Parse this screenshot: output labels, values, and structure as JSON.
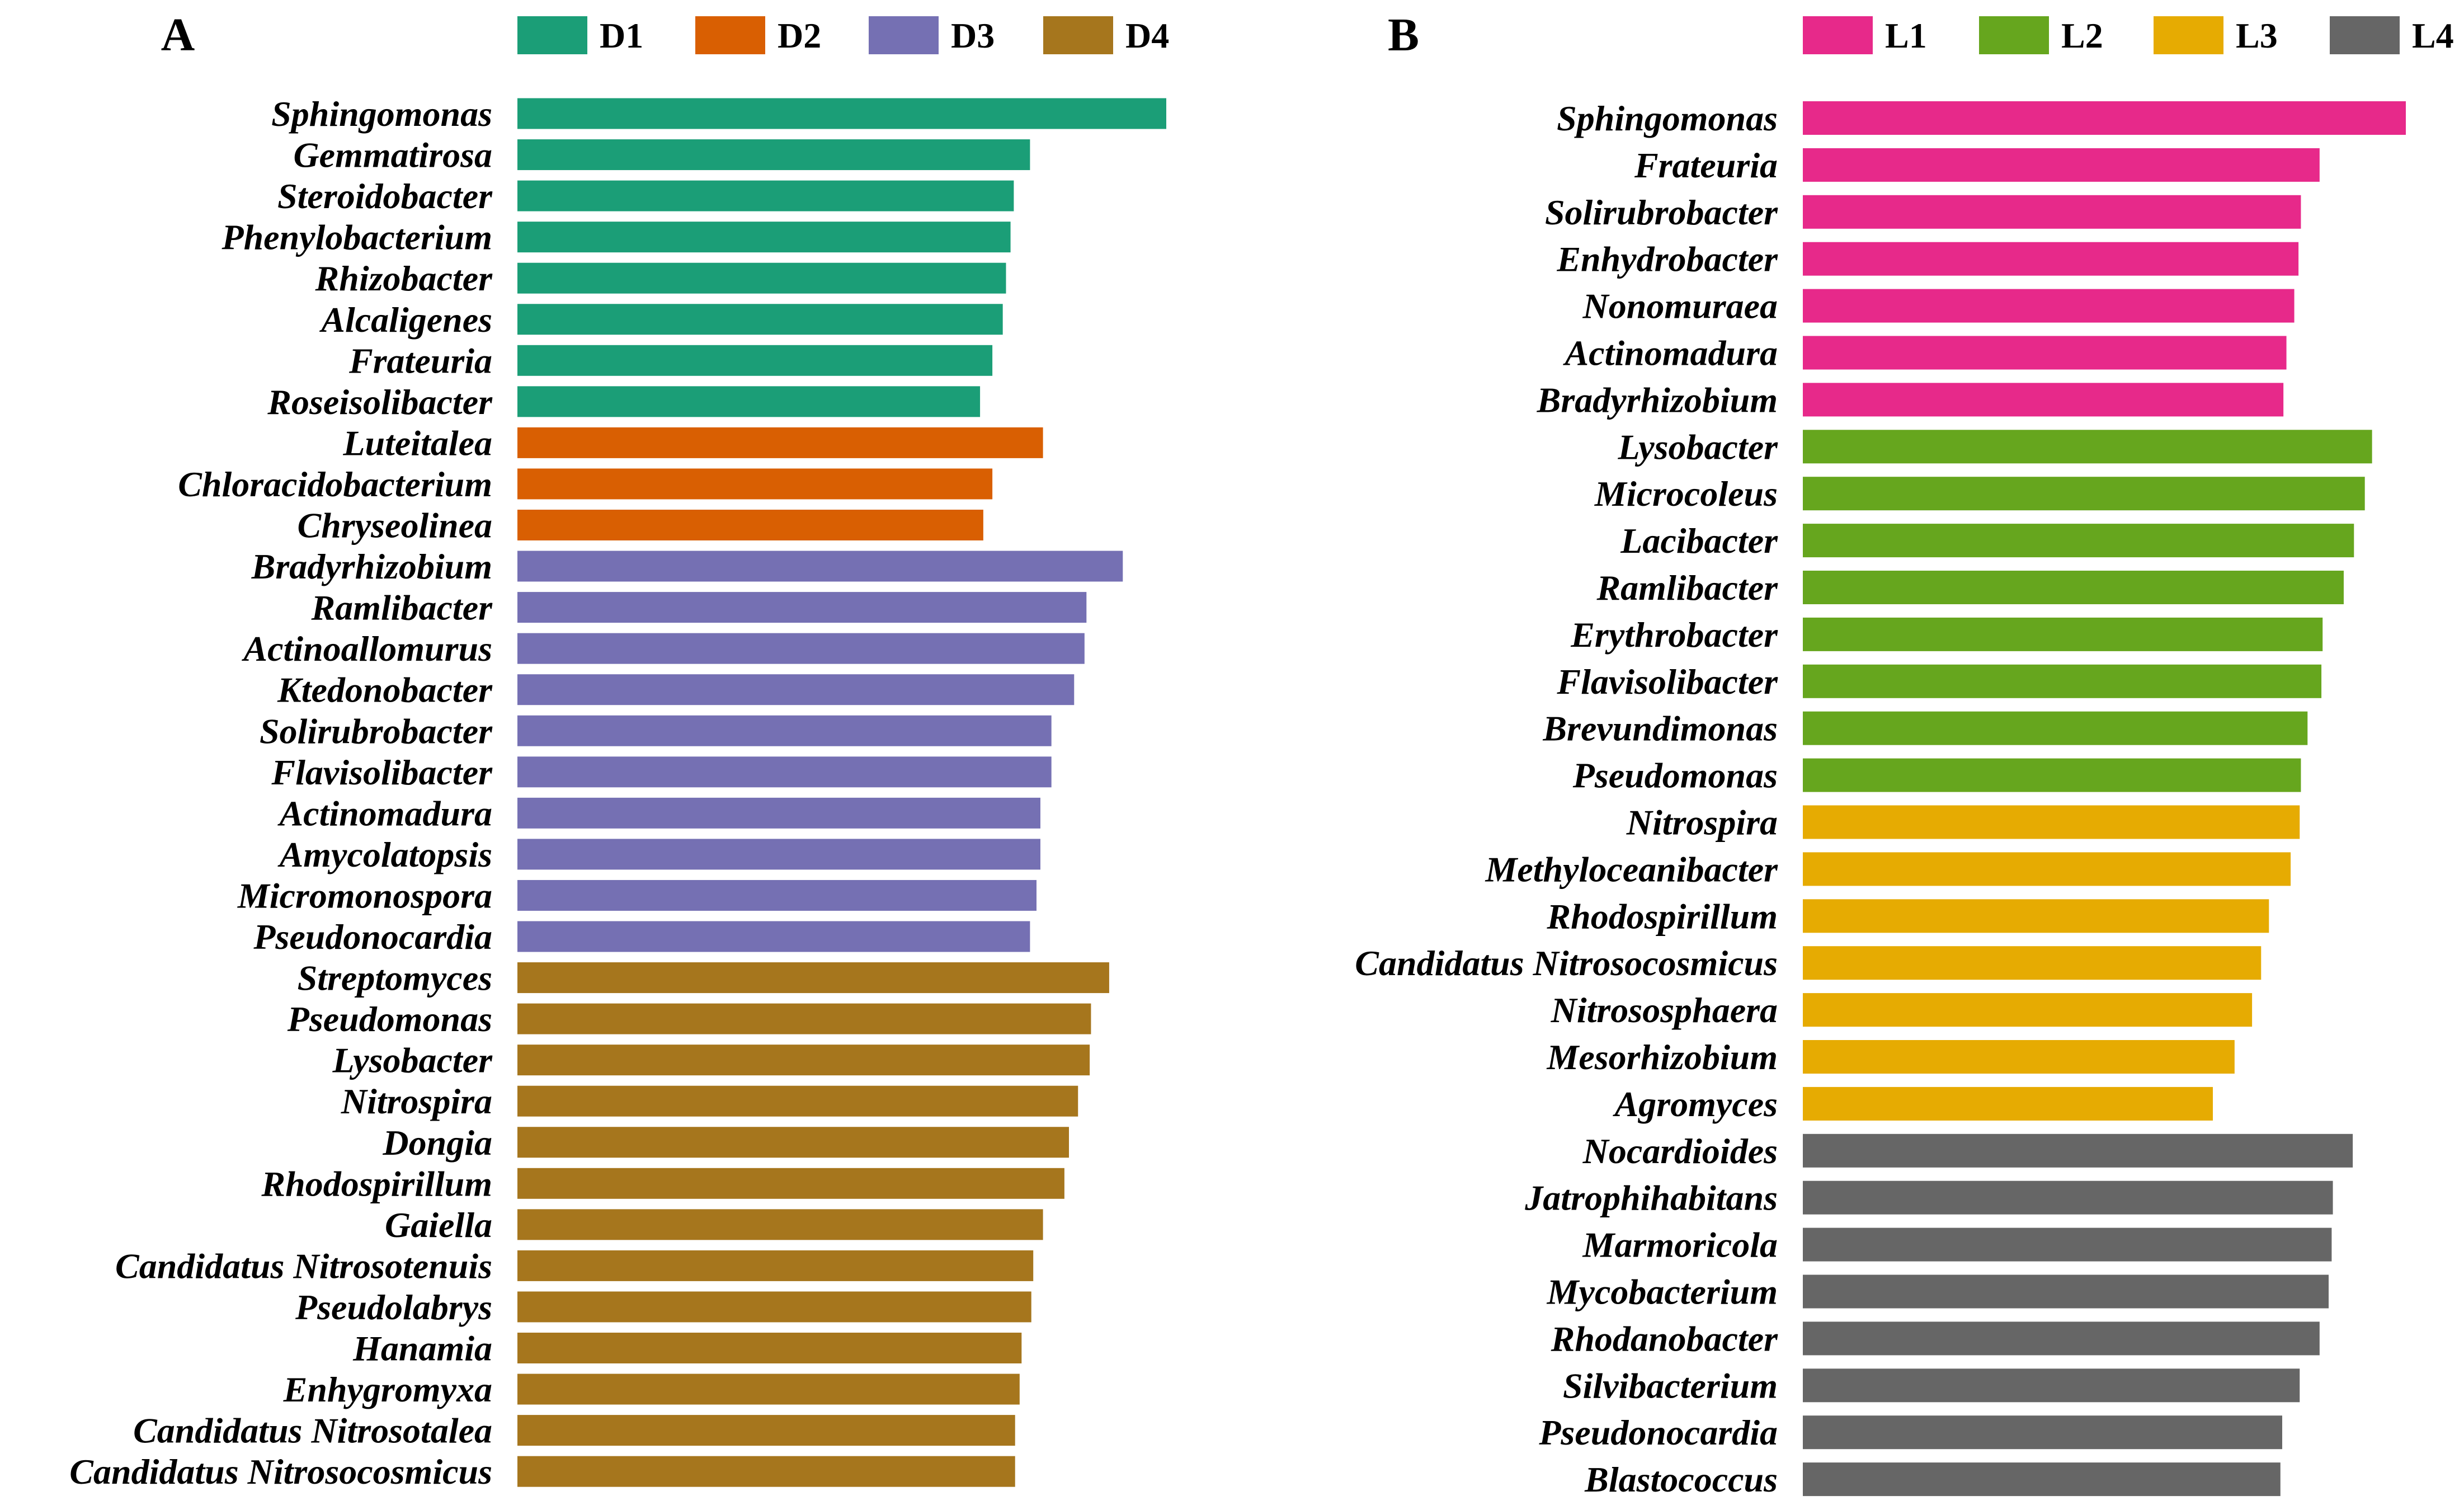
{
  "chart_data": [
    {
      "type": "bar",
      "orientation": "horizontal",
      "panel_label": "A",
      "xlim": [
        0,
        1
      ],
      "legend": [
        {
          "name": "D1",
          "color": "#1b9e77"
        },
        {
          "name": "D2",
          "color": "#d95f02"
        },
        {
          "name": "D3",
          "color": "#7570b3"
        },
        {
          "name": "D4",
          "color": "#a6761d"
        }
      ],
      "bars": [
        {
          "label": "Sphingomonas",
          "value": 1.0,
          "group": "D1"
        },
        {
          "label": "Gemmatirosa",
          "value": 0.79,
          "group": "D1"
        },
        {
          "label": "Steroidobacter",
          "value": 0.765,
          "group": "D1"
        },
        {
          "label": "Phenylobacterium",
          "value": 0.76,
          "group": "D1"
        },
        {
          "label": "Rhizobacter",
          "value": 0.753,
          "group": "D1"
        },
        {
          "label": "Alcaligenes",
          "value": 0.748,
          "group": "D1"
        },
        {
          "label": "Frateuria",
          "value": 0.732,
          "group": "D1"
        },
        {
          "label": "Roseisolibacter",
          "value": 0.713,
          "group": "D1"
        },
        {
          "label": "Luteitalea",
          "value": 0.81,
          "group": "D2"
        },
        {
          "label": "Chloracidobacterium",
          "value": 0.732,
          "group": "D2"
        },
        {
          "label": "Chryseolinea",
          "value": 0.718,
          "group": "D2"
        },
        {
          "label": "Bradyrhizobium",
          "value": 0.933,
          "group": "D3"
        },
        {
          "label": "Ramlibacter",
          "value": 0.877,
          "group": "D3"
        },
        {
          "label": "Actinoallomurus",
          "value": 0.874,
          "group": "D3"
        },
        {
          "label": "Ktedonobacter",
          "value": 0.858,
          "group": "D3"
        },
        {
          "label": "Solirubrobacter",
          "value": 0.823,
          "group": "D3"
        },
        {
          "label": "Flavisolibacter",
          "value": 0.823,
          "group": "D3"
        },
        {
          "label": "Actinomadura",
          "value": 0.806,
          "group": "D3"
        },
        {
          "label": "Amycolatopsis",
          "value": 0.806,
          "group": "D3"
        },
        {
          "label": "Micromonospora",
          "value": 0.8,
          "group": "D3"
        },
        {
          "label": "Pseudonocardia",
          "value": 0.79,
          "group": "D3"
        },
        {
          "label": "Streptomyces",
          "value": 0.912,
          "group": "D4"
        },
        {
          "label": "Pseudomonas",
          "value": 0.884,
          "group": "D4"
        },
        {
          "label": "Lysobacter",
          "value": 0.882,
          "group": "D4"
        },
        {
          "label": "Nitrospira",
          "value": 0.864,
          "group": "D4"
        },
        {
          "label": "Dongia",
          "value": 0.85,
          "group": "D4"
        },
        {
          "label": "Rhodospirillum",
          "value": 0.843,
          "group": "D4"
        },
        {
          "label": "Gaiella",
          "value": 0.81,
          "group": "D4"
        },
        {
          "label": "Candidatus Nitrosotenuis",
          "value": 0.795,
          "group": "D4"
        },
        {
          "label": "Pseudolabrys",
          "value": 0.792,
          "group": "D4"
        },
        {
          "label": "Hanamia",
          "value": 0.777,
          "group": "D4"
        },
        {
          "label": "Enhygromyxa",
          "value": 0.774,
          "group": "D4"
        },
        {
          "label": "Candidatus Nitrosotalea",
          "value": 0.767,
          "group": "D4"
        },
        {
          "label": "Candidatus Nitrosocosmicus",
          "value": 0.767,
          "group": "D4"
        }
      ]
    },
    {
      "type": "bar",
      "orientation": "horizontal",
      "panel_label": "B",
      "xlim": [
        0,
        1
      ],
      "legend": [
        {
          "name": "L1",
          "color": "#e7298a"
        },
        {
          "name": "L2",
          "color": "#66a61e"
        },
        {
          "name": "L3",
          "color": "#e6ab02"
        },
        {
          "name": "L4",
          "color": "#666666"
        }
      ],
      "bars": [
        {
          "label": "Sphingomonas",
          "value": 1.0,
          "group": "L1"
        },
        {
          "label": "Frateuria",
          "value": 0.857,
          "group": "L1"
        },
        {
          "label": "Solirubrobacter",
          "value": 0.826,
          "group": "L1"
        },
        {
          "label": "Enhydrobacter",
          "value": 0.822,
          "group": "L1"
        },
        {
          "label": "Nonomuraea",
          "value": 0.815,
          "group": "L1"
        },
        {
          "label": "Actinomadura",
          "value": 0.802,
          "group": "L1"
        },
        {
          "label": "Bradyrhizobium",
          "value": 0.797,
          "group": "L1"
        },
        {
          "label": "Lysobacter",
          "value": 0.944,
          "group": "L2"
        },
        {
          "label": "Microcoleus",
          "value": 0.932,
          "group": "L2"
        },
        {
          "label": "Lacibacter",
          "value": 0.914,
          "group": "L2"
        },
        {
          "label": "Ramlibacter",
          "value": 0.897,
          "group": "L2"
        },
        {
          "label": "Erythrobacter",
          "value": 0.862,
          "group": "L2"
        },
        {
          "label": "Flavisolibacter",
          "value": 0.86,
          "group": "L2"
        },
        {
          "label": "Brevundimonas",
          "value": 0.837,
          "group": "L2"
        },
        {
          "label": "Pseudomonas",
          "value": 0.826,
          "group": "L2"
        },
        {
          "label": "Nitrospira",
          "value": 0.824,
          "group": "L3"
        },
        {
          "label": "Methyloceanibacter",
          "value": 0.809,
          "group": "L3"
        },
        {
          "label": "Rhodospirillum",
          "value": 0.773,
          "group": "L3"
        },
        {
          "label": "Candidatus Nitrosocosmicus",
          "value": 0.76,
          "group": "L3"
        },
        {
          "label": "Nitrososphaera",
          "value": 0.745,
          "group": "L3"
        },
        {
          "label": "Mesorhizobium",
          "value": 0.716,
          "group": "L3"
        },
        {
          "label": "Agromyces",
          "value": 0.68,
          "group": "L3"
        },
        {
          "label": "Nocardioides",
          "value": 0.912,
          "group": "L4"
        },
        {
          "label": "Jatrophihabitans",
          "value": 0.879,
          "group": "L4"
        },
        {
          "label": "Marmoricola",
          "value": 0.877,
          "group": "L4"
        },
        {
          "label": "Mycobacterium",
          "value": 0.872,
          "group": "L4"
        },
        {
          "label": "Rhodanobacter",
          "value": 0.857,
          "group": "L4"
        },
        {
          "label": "Silvibacterium",
          "value": 0.824,
          "group": "L4"
        },
        {
          "label": "Pseudonocardia",
          "value": 0.795,
          "group": "L4"
        },
        {
          "label": "Blastococcus",
          "value": 0.792,
          "group": "L4"
        }
      ]
    }
  ]
}
